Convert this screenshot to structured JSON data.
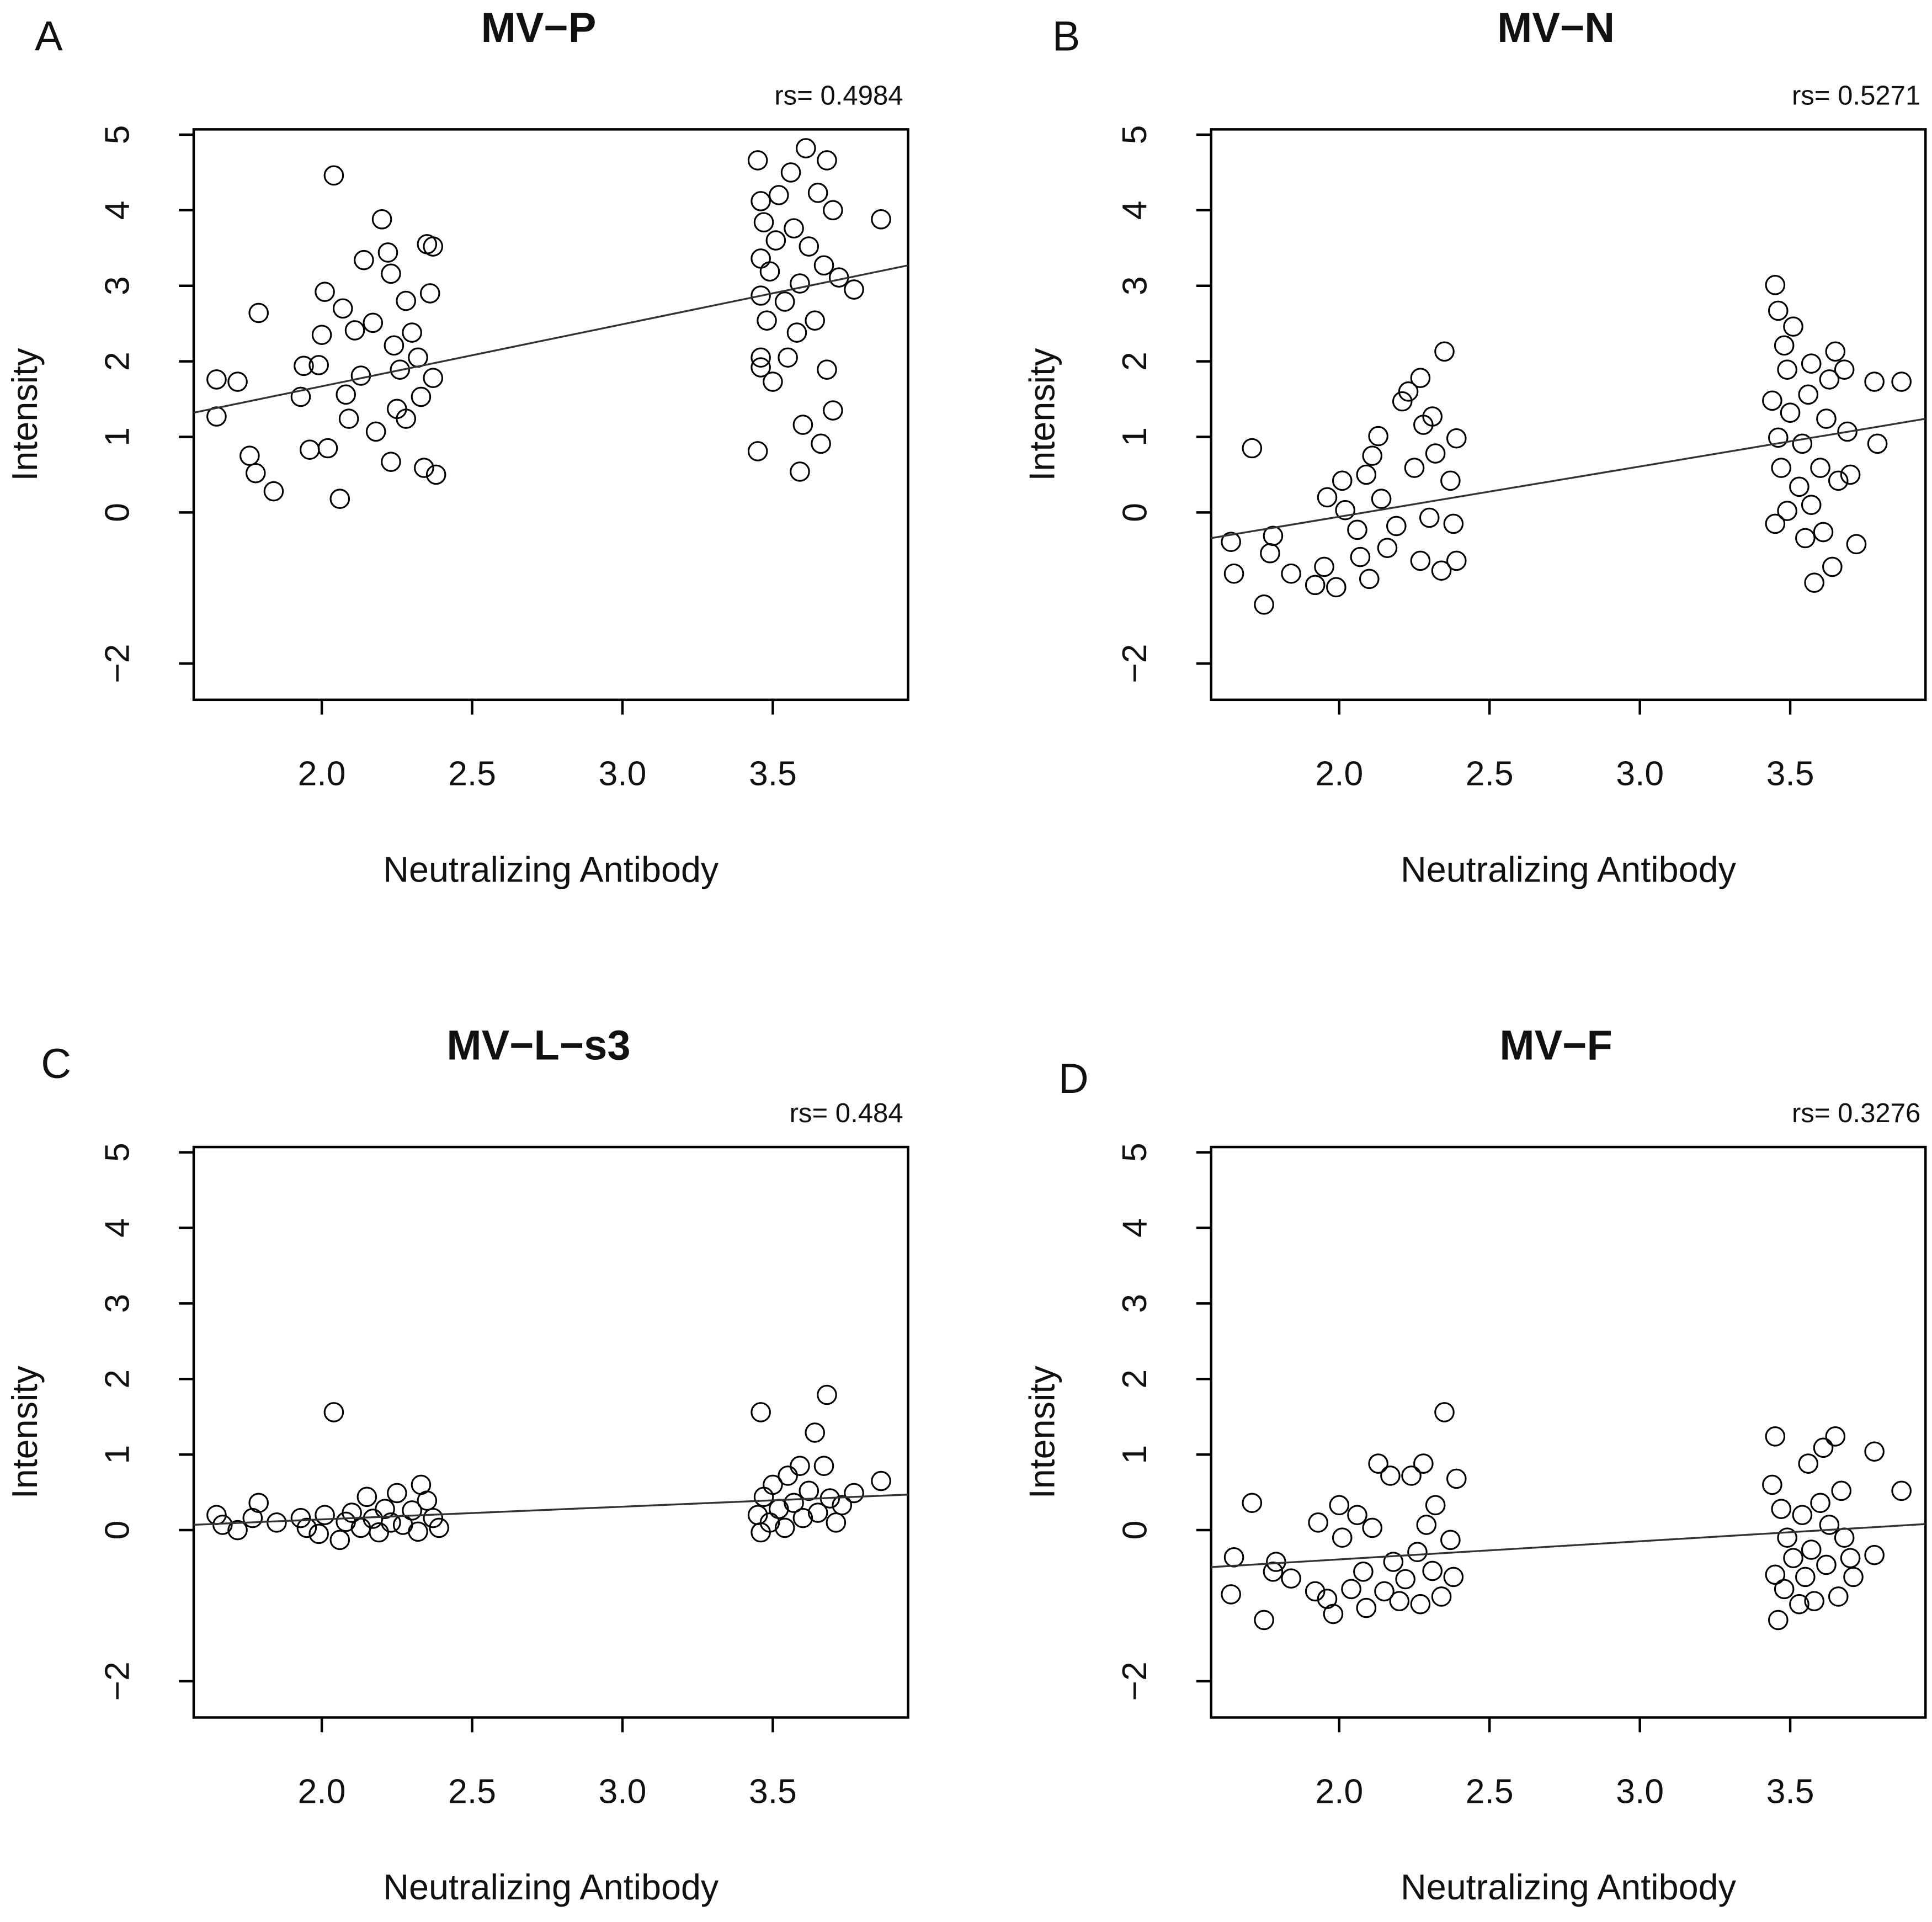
{
  "chart_data": [
    {
      "type": "scatter",
      "panel": "A",
      "title": "MV−P",
      "annotation": "rs= 0.4984",
      "x_label": "Neutralizing Antibody",
      "y_label": "Intensity",
      "color": "#000000",
      "xlim": [
        1.574,
        3.95
      ],
      "ylim": [
        -2.48,
        5.07
      ],
      "xticks": [
        {
          "value": 2,
          "label": "2.0"
        },
        2.5,
        {
          "value": 3,
          "label": "3.0"
        },
        3.5
      ],
      "yticks": [
        {
          "value": -2,
          "label": "−2"
        },
        0,
        1,
        2,
        3,
        4,
        5
      ],
      "x": [
        2.04,
        1.65,
        1.72,
        1.65,
        1.79,
        1.76,
        1.78,
        1.84,
        1.94,
        1.93,
        1.99,
        1.96,
        2.01,
        2.0,
        2.02,
        2.06,
        2.07,
        2.08,
        2.09,
        2.11,
        2.13,
        2.14,
        2.17,
        2.18,
        2.2,
        2.22,
        2.23,
        2.23,
        2.24,
        2.25,
        2.26,
        2.28,
        2.28,
        2.3,
        2.32,
        2.33,
        2.34,
        2.35,
        2.36,
        2.37,
        2.38,
        2.37,
        3.45,
        3.45,
        3.46,
        3.47,
        3.46,
        3.46,
        3.46,
        3.46,
        3.48,
        3.49,
        3.5,
        3.51,
        3.52,
        3.54,
        3.55,
        3.56,
        3.57,
        3.58,
        3.59,
        3.59,
        3.6,
        3.61,
        3.62,
        3.64,
        3.65,
        3.66,
        3.67,
        3.68,
        3.68,
        3.7,
        3.7,
        3.72,
        3.77,
        3.86
      ],
      "y": [
        4.46,
        1.76,
        1.73,
        1.27,
        2.64,
        0.75,
        0.52,
        0.28,
        1.94,
        1.53,
        1.95,
        0.83,
        2.92,
        2.35,
        0.85,
        0.18,
        2.7,
        1.56,
        1.24,
        2.41,
        1.81,
        3.34,
        2.51,
        1.07,
        3.88,
        3.44,
        0.67,
        3.16,
        2.21,
        1.37,
        1.89,
        2.8,
        1.24,
        2.38,
        2.05,
        1.53,
        0.59,
        3.55,
        2.9,
        1.78,
        0.5,
        3.52,
        4.66,
        0.81,
        4.12,
        3.84,
        3.36,
        2.87,
        2.05,
        1.92,
        2.54,
        3.19,
        1.73,
        3.6,
        4.2,
        2.79,
        2.05,
        4.5,
        3.76,
        2.38,
        0.54,
        3.03,
        1.16,
        4.82,
        3.52,
        2.54,
        4.23,
        0.91,
        3.27,
        1.89,
        4.66,
        4.0,
        1.35,
        3.11,
        2.95,
        3.88
      ],
      "trend_line": {
        "x": [
          1.574,
          3.95
        ],
        "y": [
          1.32,
          3.27
        ]
      }
    },
    {
      "type": "scatter",
      "panel": "B",
      "title": "MV−N",
      "annotation": "rs= 0.5271",
      "x_label": "Neutralizing Antibody",
      "y_label": "Intensity",
      "color": "#000000",
      "xlim": [
        1.574,
        3.95
      ],
      "ylim": [
        -2.48,
        5.07
      ],
      "xticks": [
        {
          "value": 2,
          "label": "2.0"
        },
        2.5,
        {
          "value": 3,
          "label": "3.0"
        },
        3.5
      ],
      "yticks": [
        {
          "value": -2,
          "label": "−2"
        },
        0,
        1,
        2,
        3,
        4,
        5
      ],
      "x": [
        1.64,
        1.65,
        1.71,
        1.75,
        1.78,
        1.77,
        1.84,
        1.92,
        1.95,
        1.96,
        1.99,
        2.01,
        2.02,
        2.06,
        2.07,
        2.09,
        2.1,
        2.11,
        2.13,
        2.14,
        2.16,
        2.19,
        2.21,
        2.23,
        2.25,
        2.27,
        2.27,
        2.28,
        2.3,
        2.31,
        2.32,
        2.34,
        2.35,
        2.37,
        2.38,
        2.39,
        2.39,
        3.45,
        3.46,
        3.44,
        3.45,
        3.46,
        3.47,
        3.48,
        3.49,
        3.49,
        3.5,
        3.51,
        3.53,
        3.54,
        3.55,
        3.56,
        3.57,
        3.57,
        3.58,
        3.6,
        3.61,
        3.62,
        3.63,
        3.64,
        3.65,
        3.66,
        3.68,
        3.69,
        3.7,
        3.72,
        3.78,
        3.79,
        3.87
      ],
      "y": [
        -0.39,
        -0.81,
        0.85,
        -1.22,
        -0.31,
        -0.54,
        -0.81,
        -0.96,
        -0.72,
        0.2,
        -0.99,
        0.42,
        0.03,
        -0.23,
        -0.59,
        0.5,
        -0.88,
        0.75,
        1.01,
        0.18,
        -0.47,
        -0.18,
        1.47,
        1.6,
        0.59,
        -0.64,
        1.78,
        1.16,
        -0.07,
        1.27,
        0.78,
        -0.77,
        2.13,
        0.42,
        -0.15,
        -0.64,
        0.98,
        3.01,
        2.67,
        1.48,
        -0.15,
        0.99,
        0.59,
        2.21,
        1.89,
        0.02,
        1.32,
        2.46,
        0.34,
        0.91,
        -0.34,
        1.56,
        0.1,
        1.97,
        -0.93,
        0.59,
        -0.26,
        1.24,
        1.76,
        -0.72,
        2.13,
        0.42,
        1.89,
        1.07,
        0.5,
        -0.42,
        1.73,
        0.91,
        1.73
      ],
      "trend_line": {
        "x": [
          1.574,
          3.95
        ],
        "y": [
          -0.34,
          1.24
        ]
      }
    },
    {
      "type": "scatter",
      "panel": "C",
      "title": "MV−L−s3",
      "annotation": "rs= 0.484",
      "x_label": "Neutralizing Antibody",
      "y_label": "Intensity",
      "color": "#000000",
      "xlim": [
        1.574,
        3.95
      ],
      "ylim": [
        -2.48,
        5.07
      ],
      "xticks": [
        {
          "value": 2,
          "label": "2.0"
        },
        2.5,
        {
          "value": 3,
          "label": "3.0"
        },
        3.5
      ],
      "yticks": [
        {
          "value": -2,
          "label": "−2"
        },
        0,
        1,
        2,
        3,
        4,
        5
      ],
      "x": [
        1.65,
        1.67,
        1.72,
        1.77,
        1.79,
        1.85,
        1.93,
        1.95,
        1.99,
        2.01,
        2.04,
        2.06,
        2.08,
        2.1,
        2.13,
        2.15,
        2.17,
        2.19,
        2.21,
        2.23,
        2.25,
        2.27,
        2.3,
        2.32,
        2.33,
        2.35,
        2.37,
        2.39,
        3.46,
        3.45,
        3.46,
        3.47,
        3.49,
        3.5,
        3.52,
        3.54,
        3.55,
        3.57,
        3.59,
        3.6,
        3.62,
        3.64,
        3.65,
        3.67,
        3.68,
        3.69,
        3.71,
        3.73,
        3.77,
        3.86
      ],
      "y": [
        0.2,
        0.07,
        0,
        0.16,
        0.36,
        0.1,
        0.16,
        0.03,
        -0.05,
        0.2,
        1.56,
        -0.13,
        0.11,
        0.23,
        0.03,
        0.44,
        0.15,
        -0.03,
        0.28,
        0.1,
        0.49,
        0.07,
        0.26,
        -0.02,
        0.6,
        0.39,
        0.16,
        0.03,
        1.56,
        0.2,
        -0.03,
        0.44,
        0.1,
        0.6,
        0.28,
        0.03,
        0.72,
        0.36,
        0.85,
        0.16,
        0.52,
        1.29,
        0.23,
        0.85,
        1.79,
        0.42,
        0.1,
        0.33,
        0.49,
        0.65
      ],
      "trend_line": {
        "x": [
          1.574,
          3.95
        ],
        "y": [
          0.07,
          0.47
        ]
      }
    },
    {
      "type": "scatter",
      "panel": "D",
      "title": "MV−F",
      "annotation": "rs= 0.3276",
      "x_label": "Neutralizing Antibody",
      "y_label": "Intensity",
      "color": "#000000",
      "xlim": [
        1.574,
        3.95
      ],
      "ylim": [
        -2.48,
        5.07
      ],
      "xticks": [
        {
          "value": 2,
          "label": "2.0"
        },
        2.5,
        {
          "value": 3,
          "label": "3.0"
        },
        3.5
      ],
      "yticks": [
        {
          "value": -2,
          "label": "−2"
        },
        0,
        1,
        2,
        3,
        4,
        5
      ],
      "x": [
        1.64,
        1.65,
        1.71,
        1.75,
        1.78,
        1.79,
        1.84,
        1.92,
        1.93,
        1.96,
        1.98,
        2.0,
        2.01,
        2.04,
        2.06,
        2.08,
        2.09,
        2.11,
        2.13,
        2.15,
        2.17,
        2.18,
        2.2,
        2.22,
        2.24,
        2.26,
        2.27,
        2.28,
        2.29,
        2.31,
        2.32,
        2.34,
        2.35,
        2.37,
        2.38,
        2.39,
        3.45,
        3.44,
        3.45,
        3.46,
        3.47,
        3.48,
        3.49,
        3.51,
        3.53,
        3.54,
        3.55,
        3.56,
        3.57,
        3.58,
        3.6,
        3.61,
        3.62,
        3.63,
        3.65,
        3.66,
        3.67,
        3.68,
        3.7,
        3.71,
        3.78,
        3.78,
        3.87
      ],
      "y": [
        -0.85,
        -0.36,
        0.36,
        -1.19,
        -0.55,
        -0.42,
        -0.64,
        -0.81,
        0.1,
        -0.91,
        -1.11,
        0.33,
        -0.1,
        -0.78,
        0.2,
        -0.55,
        -1.03,
        0.03,
        0.88,
        -0.81,
        0.72,
        -0.42,
        -0.94,
        -0.65,
        0.72,
        -0.29,
        -0.98,
        0.88,
        0.07,
        -0.54,
        0.33,
        -0.88,
        1.56,
        -0.13,
        -0.62,
        0.68,
        1.24,
        0.6,
        -0.59,
        -1.19,
        0.28,
        -0.78,
        -0.1,
        -0.37,
        -0.98,
        0.2,
        -0.62,
        0.88,
        -0.26,
        -0.94,
        0.36,
        1.09,
        -0.46,
        0.07,
        1.24,
        -0.88,
        0.52,
        -0.1,
        -0.37,
        -0.62,
        1.04,
        -0.33,
        0.52
      ],
      "trend_line": {
        "x": [
          1.574,
          3.95
        ],
        "y": [
          -0.49,
          0.08
        ]
      }
    }
  ]
}
